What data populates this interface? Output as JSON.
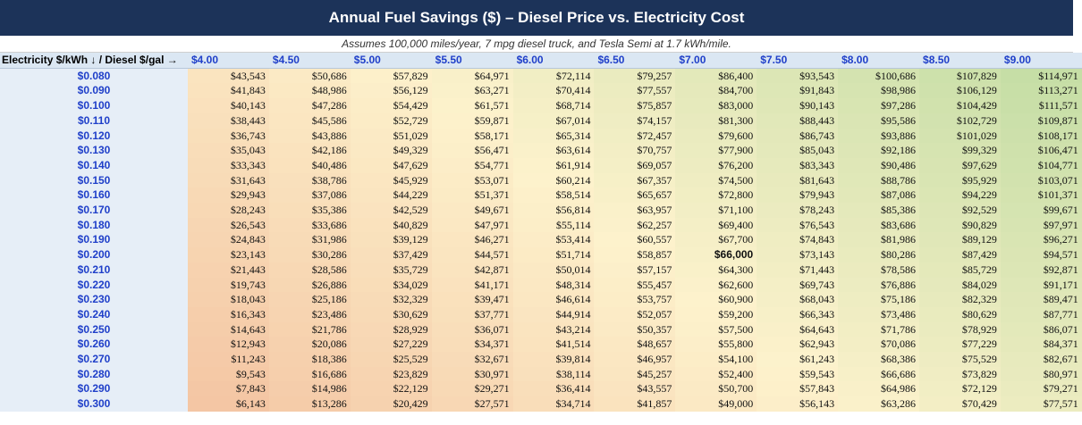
{
  "header": {
    "title": "Annual Fuel Savings ($) – Diesel Price vs. Electricity Cost",
    "subtitle": "Assumes 100,000 miles/year, 7 mpg diesel truck, and Tesla Semi at 1.7 kWh/mile.",
    "corner_label": "Electricity $/kWh ↓ / Diesel $/gal →"
  },
  "colors": {
    "title_bg": "#1c3359",
    "header_text": "#1f3fc9",
    "low_savings": "#f4c6a4",
    "mid_savings": "#fdf2cc",
    "high_savings": "#c6dea6"
  },
  "chart_data": {
    "type": "heatmap",
    "title": "Annual Fuel Savings ($) – Diesel Price vs. Electricity Cost",
    "xlabel": "Diesel $/gal",
    "ylabel": "Electricity $/kWh",
    "x": [
      "$4.00",
      "$4.50",
      "$5.00",
      "$5.50",
      "$6.00",
      "$6.50",
      "$7.00",
      "$7.50",
      "$8.00",
      "$8.50",
      "$9.00"
    ],
    "y": [
      "$0.080",
      "$0.090",
      "$0.100",
      "$0.110",
      "$0.120",
      "$0.130",
      "$0.140",
      "$0.150",
      "$0.160",
      "$0.170",
      "$0.180",
      "$0.190",
      "$0.200",
      "$0.210",
      "$0.220",
      "$0.230",
      "$0.240",
      "$0.250",
      "$0.260",
      "$0.270",
      "$0.280",
      "$0.290",
      "$0.300"
    ],
    "values": [
      [
        "$43,543",
        "$50,686",
        "$57,829",
        "$64,971",
        "$72,114",
        "$79,257",
        "$86,400",
        "$93,543",
        "$100,686",
        "$107,829",
        "$114,971"
      ],
      [
        "$41,843",
        "$48,986",
        "$56,129",
        "$63,271",
        "$70,414",
        "$77,557",
        "$84,700",
        "$91,843",
        "$98,986",
        "$106,129",
        "$113,271"
      ],
      [
        "$40,143",
        "$47,286",
        "$54,429",
        "$61,571",
        "$68,714",
        "$75,857",
        "$83,000",
        "$90,143",
        "$97,286",
        "$104,429",
        "$111,571"
      ],
      [
        "$38,443",
        "$45,586",
        "$52,729",
        "$59,871",
        "$67,014",
        "$74,157",
        "$81,300",
        "$88,443",
        "$95,586",
        "$102,729",
        "$109,871"
      ],
      [
        "$36,743",
        "$43,886",
        "$51,029",
        "$58,171",
        "$65,314",
        "$72,457",
        "$79,600",
        "$86,743",
        "$93,886",
        "$101,029",
        "$108,171"
      ],
      [
        "$35,043",
        "$42,186",
        "$49,329",
        "$56,471",
        "$63,614",
        "$70,757",
        "$77,900",
        "$85,043",
        "$92,186",
        "$99,329",
        "$106,471"
      ],
      [
        "$33,343",
        "$40,486",
        "$47,629",
        "$54,771",
        "$61,914",
        "$69,057",
        "$76,200",
        "$83,343",
        "$90,486",
        "$97,629",
        "$104,771"
      ],
      [
        "$31,643",
        "$38,786",
        "$45,929",
        "$53,071",
        "$60,214",
        "$67,357",
        "$74,500",
        "$81,643",
        "$88,786",
        "$95,929",
        "$103,071"
      ],
      [
        "$29,943",
        "$37,086",
        "$44,229",
        "$51,371",
        "$58,514",
        "$65,657",
        "$72,800",
        "$79,943",
        "$87,086",
        "$94,229",
        "$101,371"
      ],
      [
        "$28,243",
        "$35,386",
        "$42,529",
        "$49,671",
        "$56,814",
        "$63,957",
        "$71,100",
        "$78,243",
        "$85,386",
        "$92,529",
        "$99,671"
      ],
      [
        "$26,543",
        "$33,686",
        "$40,829",
        "$47,971",
        "$55,114",
        "$62,257",
        "$69,400",
        "$76,543",
        "$83,686",
        "$90,829",
        "$97,971"
      ],
      [
        "$24,843",
        "$31,986",
        "$39,129",
        "$46,271",
        "$53,414",
        "$60,557",
        "$67,700",
        "$74,843",
        "$81,986",
        "$89,129",
        "$96,271"
      ],
      [
        "$23,143",
        "$30,286",
        "$37,429",
        "$44,571",
        "$51,714",
        "$58,857",
        "$66,000",
        "$73,143",
        "$80,286",
        "$87,429",
        "$94,571"
      ],
      [
        "$21,443",
        "$28,586",
        "$35,729",
        "$42,871",
        "$50,014",
        "$57,157",
        "$64,300",
        "$71,443",
        "$78,586",
        "$85,729",
        "$92,871"
      ],
      [
        "$19,743",
        "$26,886",
        "$34,029",
        "$41,171",
        "$48,314",
        "$55,457",
        "$62,600",
        "$69,743",
        "$76,886",
        "$84,029",
        "$91,171"
      ],
      [
        "$18,043",
        "$25,186",
        "$32,329",
        "$39,471",
        "$46,614",
        "$53,757",
        "$60,900",
        "$68,043",
        "$75,186",
        "$82,329",
        "$89,471"
      ],
      [
        "$16,343",
        "$23,486",
        "$30,629",
        "$37,771",
        "$44,914",
        "$52,057",
        "$59,200",
        "$66,343",
        "$73,486",
        "$80,629",
        "$87,771"
      ],
      [
        "$14,643",
        "$21,786",
        "$28,929",
        "$36,071",
        "$43,214",
        "$50,357",
        "$57,500",
        "$64,643",
        "$71,786",
        "$78,929",
        "$86,071"
      ],
      [
        "$12,943",
        "$20,086",
        "$27,229",
        "$34,371",
        "$41,514",
        "$48,657",
        "$55,800",
        "$62,943",
        "$70,086",
        "$77,229",
        "$84,371"
      ],
      [
        "$11,243",
        "$18,386",
        "$25,529",
        "$32,671",
        "$39,814",
        "$46,957",
        "$54,100",
        "$61,243",
        "$68,386",
        "$75,529",
        "$82,671"
      ],
      [
        "$9,543",
        "$16,686",
        "$23,829",
        "$30,971",
        "$38,114",
        "$45,257",
        "$52,400",
        "$59,543",
        "$66,686",
        "$73,829",
        "$80,971"
      ],
      [
        "$7,843",
        "$14,986",
        "$22,129",
        "$29,271",
        "$36,414",
        "$43,557",
        "$50,700",
        "$57,843",
        "$64,986",
        "$72,129",
        "$79,271"
      ],
      [
        "$6,143",
        "$13,286",
        "$20,429",
        "$27,571",
        "$34,714",
        "$41,857",
        "$49,000",
        "$56,143",
        "$63,286",
        "$70,429",
        "$77,571"
      ]
    ],
    "highlight": {
      "row": "$0.200",
      "col": "$7.00",
      "value": "$66,000"
    },
    "color_scale": [
      "#f4c6a4",
      "#fdf2cc",
      "#c6dea6"
    ]
  }
}
